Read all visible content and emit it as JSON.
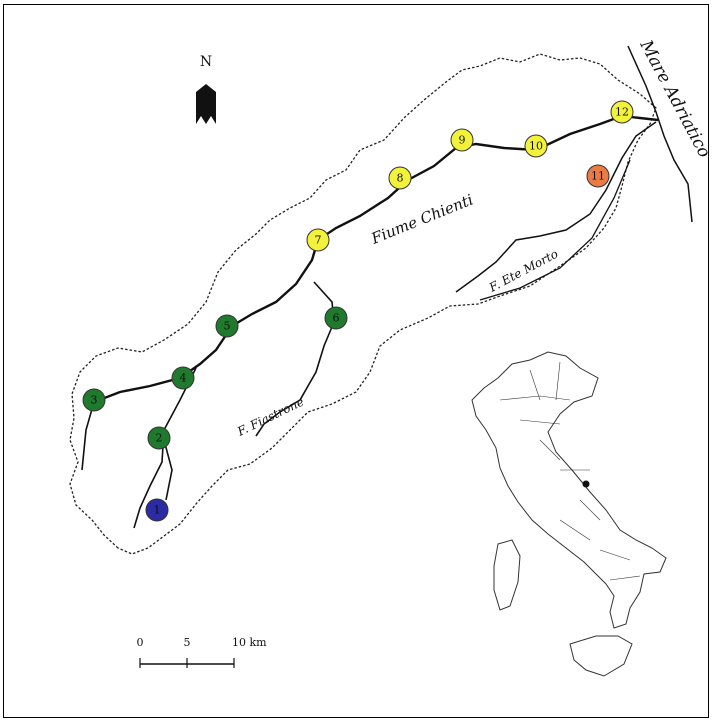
{
  "map": {
    "north_label": "N",
    "sea_label": "Mare Adriatico",
    "river_main_label": "Fiume Chienti",
    "river_fiastrone_label": "F. Fiastrone",
    "river_ete_label": "F. Ete Morto",
    "scale": {
      "tick_0": "0",
      "tick_5": "5",
      "tick_10": "10 km"
    },
    "colors": {
      "green": "#1f7a2e",
      "yellow": "#f2f23a",
      "orange": "#ec7a45",
      "blue": "#2b2ba3"
    },
    "sites": [
      {
        "id": "1",
        "label": "1",
        "color": "blue"
      },
      {
        "id": "2",
        "label": "2",
        "color": "green"
      },
      {
        "id": "3",
        "label": "3",
        "color": "green"
      },
      {
        "id": "4",
        "label": "4",
        "color": "green"
      },
      {
        "id": "5",
        "label": "5",
        "color": "green"
      },
      {
        "id": "6",
        "label": "6",
        "color": "green"
      },
      {
        "id": "7",
        "label": "7",
        "color": "yellow"
      },
      {
        "id": "8",
        "label": "8",
        "color": "yellow"
      },
      {
        "id": "9",
        "label": "9",
        "color": "yellow"
      },
      {
        "id": "10",
        "label": "10",
        "color": "yellow"
      },
      {
        "id": "11",
        "label": "11",
        "color": "orange"
      },
      {
        "id": "12",
        "label": "12",
        "color": "yellow"
      }
    ]
  }
}
